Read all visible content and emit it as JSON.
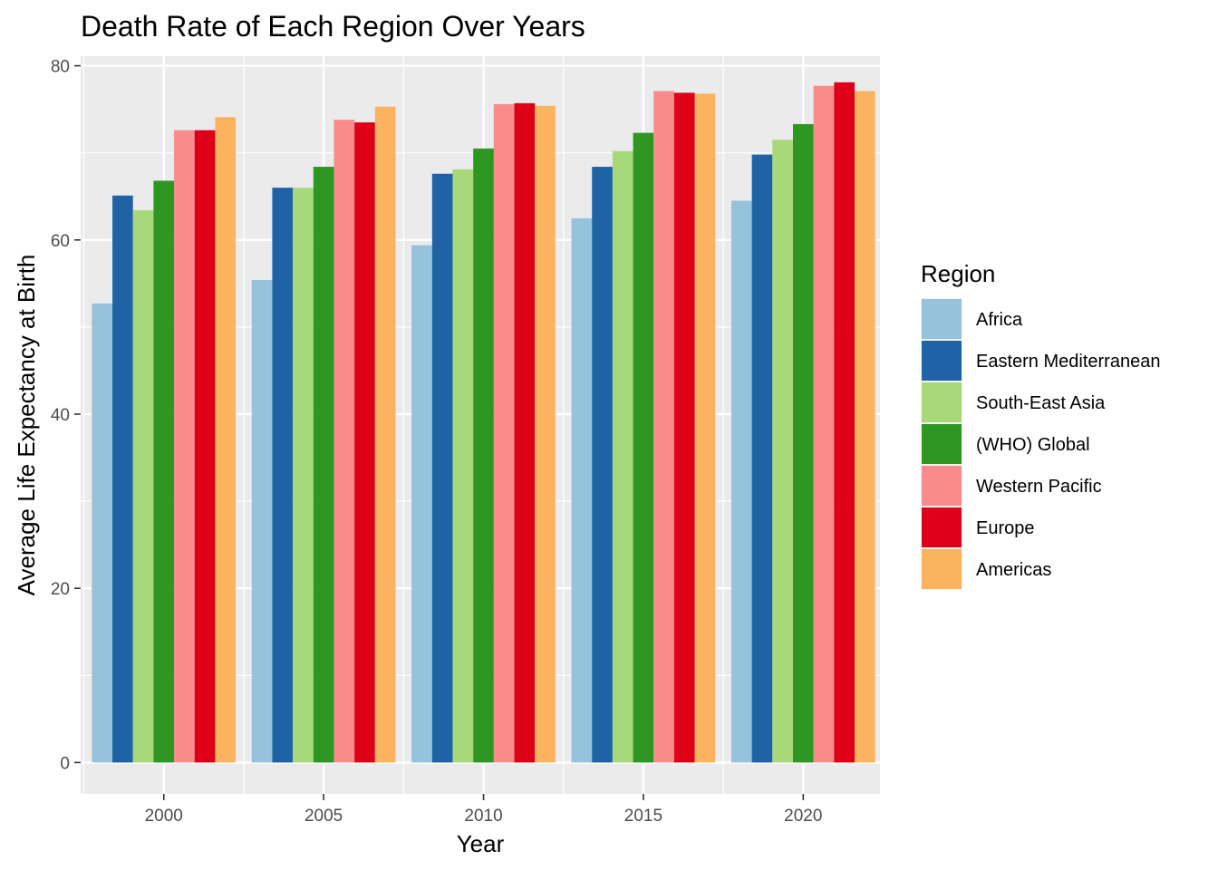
{
  "chart_data": {
    "type": "bar",
    "title": "Death Rate of Each Region Over Years",
    "xlabel": "Year",
    "ylabel": "Average Life Expectancy at Birth",
    "x": [
      2000,
      2005,
      2010,
      2015,
      2020
    ],
    "xlim": [
      1997.4,
      2022.4
    ],
    "ylim": [
      -3.6,
      81.1
    ],
    "x_ticks": [
      2000,
      2005,
      2010,
      2015,
      2020
    ],
    "y_ticks": [
      0,
      20,
      40,
      60,
      80
    ],
    "grid": true,
    "legend": {
      "title": "Region",
      "position": "right"
    },
    "series": [
      {
        "name": "Africa",
        "color": "#97C2DC",
        "values": [
          52.7,
          55.4,
          59.4,
          62.5,
          64.5
        ]
      },
      {
        "name": "Eastern Mediterranean",
        "color": "#1F63A6",
        "values": [
          65.1,
          66.0,
          67.6,
          68.4,
          69.8
        ]
      },
      {
        "name": "South-East Asia",
        "color": "#A7D97A",
        "values": [
          63.4,
          66.0,
          68.1,
          70.2,
          71.5
        ]
      },
      {
        "name": "(WHO) Global",
        "color": "#2E9623",
        "values": [
          66.8,
          68.4,
          70.5,
          72.3,
          73.3
        ]
      },
      {
        "name": "Western Pacific",
        "color": "#F98B8B",
        "values": [
          72.6,
          73.8,
          75.6,
          77.1,
          77.7
        ]
      },
      {
        "name": "Europe",
        "color": "#DD0018",
        "values": [
          72.6,
          73.5,
          75.7,
          76.9,
          78.1
        ]
      },
      {
        "name": "Americas",
        "color": "#FBB360",
        "values": [
          74.1,
          75.3,
          75.4,
          76.8,
          77.1
        ]
      }
    ]
  }
}
